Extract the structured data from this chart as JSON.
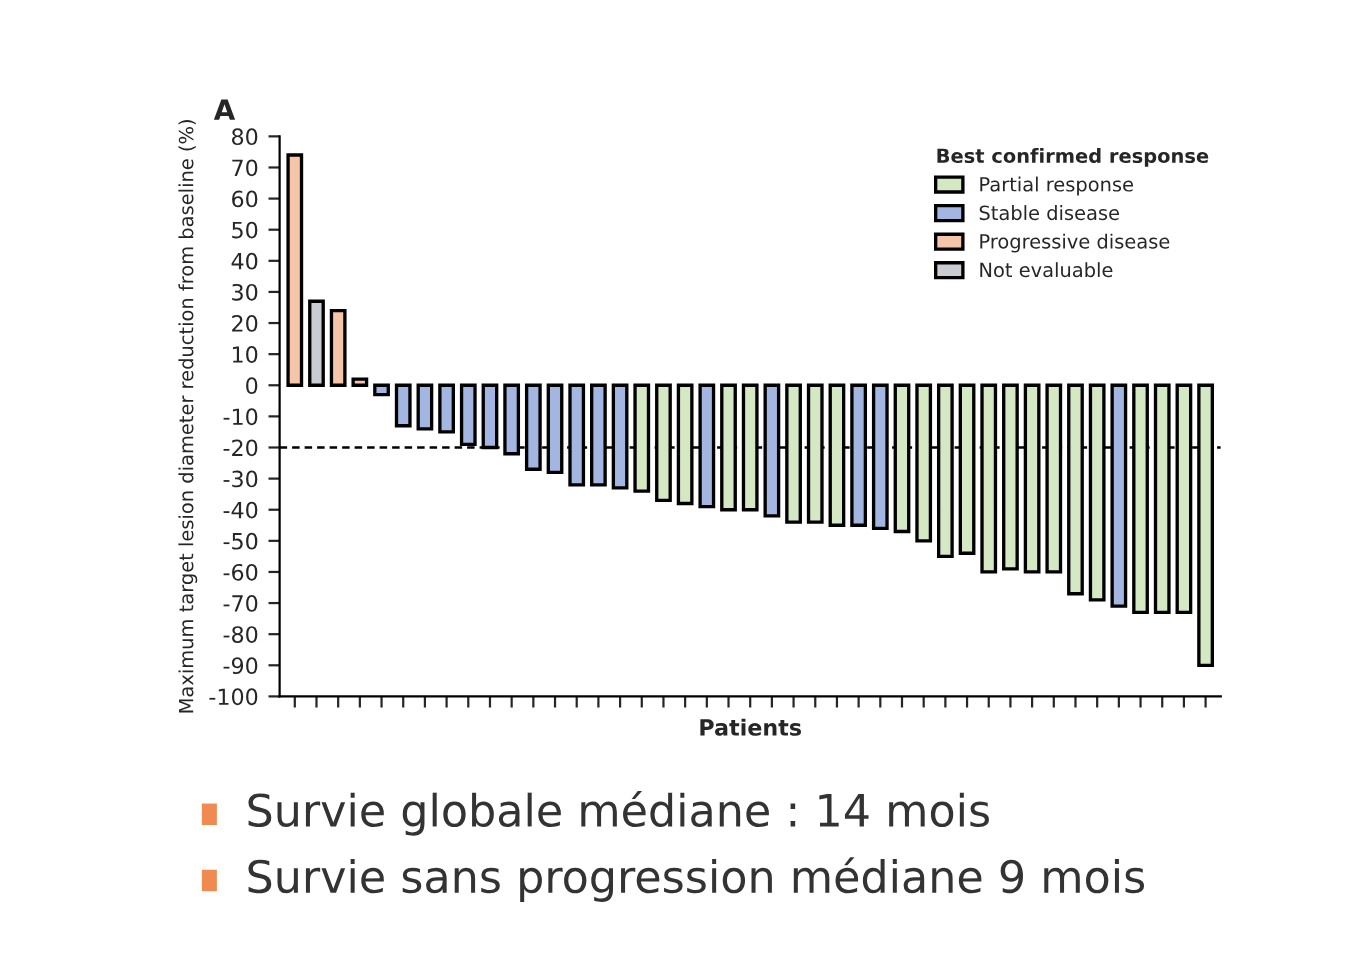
{
  "chart_data": {
    "type": "bar",
    "title": "A",
    "xlabel": "Patients",
    "ylabel": "Maximum target lesion diameter reduction from baseline (%)",
    "legend_title": "Best confirmed response",
    "categories": [
      null,
      null,
      null,
      null,
      null,
      null,
      null,
      null,
      null,
      null,
      null,
      null,
      null,
      null,
      null,
      null,
      null,
      null,
      null,
      null,
      null,
      null,
      null,
      null,
      null,
      null,
      null,
      null,
      null,
      null,
      null,
      null,
      null,
      null,
      null,
      null,
      null,
      null,
      null,
      null,
      null,
      null,
      null
    ],
    "series": [
      {
        "name": "Partial response",
        "color": "#d5e8c4",
        "values": [
          null,
          null,
          null,
          null,
          null,
          null,
          null,
          null,
          null,
          null,
          null,
          null,
          null,
          null,
          null,
          null,
          -34,
          -37,
          -38,
          null,
          -40,
          -40,
          null,
          -44,
          -44,
          -45,
          null,
          null,
          -47,
          -50,
          -55,
          -54,
          -60,
          -59,
          -60,
          -60,
          -67,
          -69,
          null,
          -73,
          -73,
          -73,
          -90
        ]
      },
      {
        "name": "Stable disease",
        "color": "#a3b6e2",
        "values": [
          null,
          null,
          null,
          null,
          -3,
          -13,
          -14,
          -15,
          -19,
          -20,
          -22,
          -27,
          -28,
          -32,
          -32,
          -33,
          null,
          null,
          null,
          -39,
          null,
          null,
          -42,
          null,
          null,
          null,
          -45,
          -46,
          null,
          null,
          null,
          null,
          null,
          null,
          null,
          null,
          null,
          null,
          -71,
          null,
          null,
          null,
          null
        ]
      },
      {
        "name": "Progressive disease",
        "color": "#f6c4a8",
        "values": [
          74,
          null,
          24,
          2,
          null,
          null,
          null,
          null,
          null,
          null,
          null,
          null,
          null,
          null,
          null,
          null,
          null,
          null,
          null,
          null,
          null,
          null,
          null,
          null,
          null,
          null,
          null,
          null,
          null,
          null,
          null,
          null,
          null,
          null,
          null,
          null,
          null,
          null,
          null,
          null,
          null,
          null,
          null
        ]
      },
      {
        "name": "Not evaluable",
        "color": "#c9cdd2",
        "values": [
          null,
          27,
          null,
          null,
          null,
          null,
          null,
          null,
          null,
          null,
          null,
          null,
          null,
          null,
          null,
          null,
          null,
          null,
          null,
          null,
          null,
          null,
          null,
          null,
          null,
          null,
          null,
          null,
          null,
          null,
          null,
          null,
          null,
          null,
          null,
          null,
          null,
          null,
          null,
          null,
          null,
          null,
          null
        ]
      }
    ],
    "ylim": [
      -100,
      80
    ],
    "yticks": [
      -100,
      -90,
      -80,
      -70,
      -60,
      -50,
      -40,
      -30,
      -20,
      -10,
      0,
      10,
      20,
      30,
      40,
      50,
      60,
      70,
      80
    ],
    "ref_lines": [
      {
        "axis": "y",
        "value": -20,
        "line_style": "dashed"
      }
    ],
    "legend": "top right",
    "grid": false,
    "tick_labels": "y",
    "annotations": [
      "Survie globale médiane : 14 mois",
      "Survie sans progression médiane 9 mois"
    ]
  }
}
